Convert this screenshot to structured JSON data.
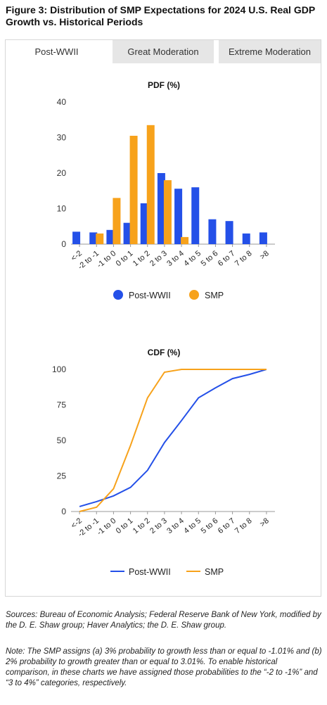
{
  "figure": {
    "number": "Figure 3:",
    "title": "Distribution of SMP Expectations for 2024 U.S. Real GDP Growth vs. Historical Periods"
  },
  "tabs": [
    {
      "label": "Post-WWII",
      "active": true
    },
    {
      "label": "Great Moderation",
      "active": false
    },
    {
      "label": "Extreme Moderation",
      "active": false
    }
  ],
  "colors": {
    "post_wwii": "#2450e8",
    "smp": "#f7a21b"
  },
  "chart_data": [
    {
      "type": "bar",
      "title": "PDF (%)",
      "categories": [
        "<-2",
        "-2 to -1",
        "-1 to 0",
        "0 to 1",
        "1 to 2",
        "2 to 3",
        "3 to 4",
        "4 to 5",
        "5 to 6",
        "6 to 7",
        "7 to 8",
        ">8"
      ],
      "series": [
        {
          "name": "Post-WWII",
          "color": "#2450e8",
          "values": [
            3.5,
            3.3,
            4.0,
            6.0,
            11.5,
            20.0,
            15.6,
            16.0,
            7.0,
            6.5,
            3.0,
            3.3
          ]
        },
        {
          "name": "SMP",
          "color": "#f7a21b",
          "values": [
            0,
            3.0,
            13.0,
            30.5,
            33.5,
            18.0,
            2.0,
            0,
            0,
            0,
            0,
            0
          ]
        }
      ],
      "ylim": [
        0,
        40
      ],
      "yticks": [
        0,
        10,
        20,
        30,
        40
      ],
      "legend": "bottom"
    },
    {
      "type": "line",
      "title": "CDF (%)",
      "categories": [
        "<-2",
        "-2 to -1",
        "-1 to 0",
        "0 to 1",
        "1 to 2",
        "2 to 3",
        "3 to 4",
        "4 to 5",
        "5 to 6",
        "6 to 7",
        "7 to 8",
        ">8"
      ],
      "series": [
        {
          "name": "Post-WWII",
          "color": "#2450e8",
          "values": [
            3.5,
            7.0,
            11.0,
            17.0,
            29.0,
            48.5,
            64.0,
            80.0,
            87.0,
            93.5,
            96.5,
            100
          ]
        },
        {
          "name": "SMP",
          "color": "#f7a21b",
          "values": [
            0,
            3.0,
            16.0,
            46.5,
            80.0,
            98.0,
            100,
            100,
            100,
            100,
            100,
            100
          ]
        }
      ],
      "ylim": [
        0,
        100
      ],
      "yticks": [
        0,
        25,
        50,
        75,
        100
      ],
      "legend": "bottom"
    }
  ],
  "notes": {
    "sources": "Sources: Bureau of Economic Analysis; Federal Reserve Bank of New York, modified by the D. E. Shaw group; Haver Analytics; the D. E. Shaw group.",
    "note": "Note: The SMP assigns (a) 3% probability to growth less than or equal to -1.01% and (b) 2% probability to growth greater than or equal to 3.01%. To enable historical comparison, in these charts we have assigned those probabilities to the “-2 to -1%” and “3 to 4%” categories, respectively."
  }
}
